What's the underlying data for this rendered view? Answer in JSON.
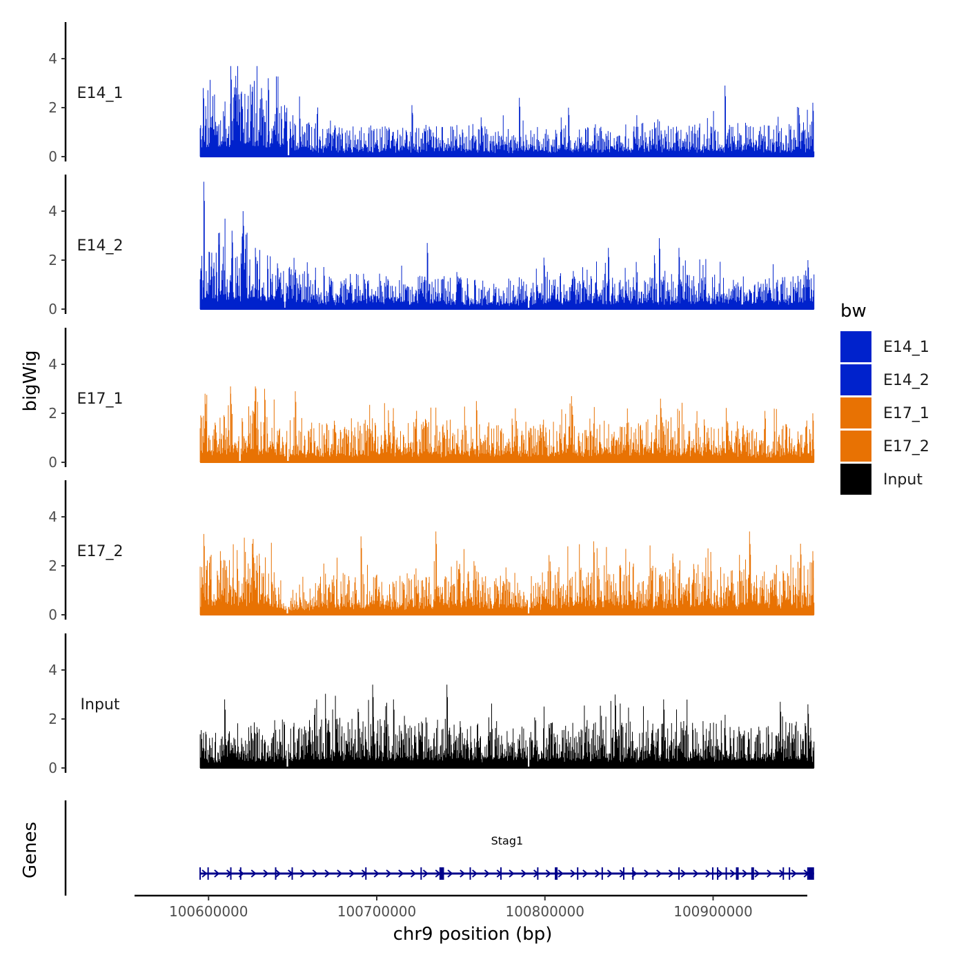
{
  "chart_data": {
    "type": "area",
    "title": "",
    "ylabel": "bigWig",
    "xlabel": "chr9 position (bp)",
    "region": {
      "chrom": "chr9",
      "start": 100595000,
      "end": 100960000
    },
    "xlim": [
      100556000,
      100956000
    ],
    "x_ticks": [
      100600000,
      100700000,
      100800000,
      100900000
    ],
    "x_tick_labels": [
      "100600000",
      "100700000",
      "100800000",
      "100900000"
    ],
    "ylim": [
      0,
      5.5
    ],
    "y_ticks": [
      0,
      2,
      4
    ],
    "y_tick_labels": [
      "0",
      "2",
      "4"
    ],
    "tracks": [
      {
        "name": "E14_1",
        "color": "#0022CC",
        "max": 3.7,
        "profile": [
          [
            0,
            1.6
          ],
          [
            0.02,
            2.0
          ],
          [
            0.05,
            2.4
          ],
          [
            0.09,
            2.3
          ],
          [
            0.12,
            1.9
          ],
          [
            0.145,
            1.5
          ],
          [
            0.2,
            1.0
          ],
          [
            0.3,
            0.95
          ],
          [
            0.4,
            1.0
          ],
          [
            0.5,
            0.9
          ],
          [
            0.6,
            0.95
          ],
          [
            0.7,
            1.0
          ],
          [
            0.75,
            1.1
          ],
          [
            0.8,
            1.0
          ],
          [
            0.85,
            1.0
          ],
          [
            0.9,
            1.0
          ],
          [
            0.95,
            1.05
          ],
          [
            1,
            1.1
          ]
        ],
        "gaps": [
          0.144
        ],
        "peaks": [
          [
            0.005,
            2.8
          ],
          [
            0.05,
            3.7
          ],
          [
            0.058,
            3.3
          ],
          [
            0.1,
            2.8
          ],
          [
            0.111,
            3.2
          ],
          [
            0.345,
            2.1
          ],
          [
            0.52,
            2.4
          ],
          [
            0.6,
            2.0
          ],
          [
            0.855,
            2.9
          ],
          [
            0.975,
            2.0
          ],
          [
            0.998,
            2.2
          ]
        ]
      },
      {
        "name": "E14_2",
        "color": "#0022CC",
        "max": 5.2,
        "profile": [
          [
            0,
            1.7
          ],
          [
            0.02,
            1.9
          ],
          [
            0.06,
            2.1
          ],
          [
            0.1,
            1.9
          ],
          [
            0.13,
            1.5
          ],
          [
            0.2,
            1.0
          ],
          [
            0.3,
            1.1
          ],
          [
            0.4,
            1.0
          ],
          [
            0.5,
            0.8
          ],
          [
            0.55,
            1.0
          ],
          [
            0.6,
            1.2
          ],
          [
            0.7,
            1.15
          ],
          [
            0.8,
            1.1
          ],
          [
            0.9,
            1.0
          ],
          [
            0.95,
            1.05
          ],
          [
            1,
            1.2
          ]
        ],
        "gaps": [
          0.138,
          0.535
        ],
        "peaks": [
          [
            0.006,
            5.2
          ],
          [
            0.03,
            3.1
          ],
          [
            0.052,
            3.2
          ],
          [
            0.07,
            4.0
          ],
          [
            0.09,
            2.5
          ],
          [
            0.37,
            2.7
          ],
          [
            0.56,
            2.1
          ],
          [
            0.665,
            2.5
          ],
          [
            0.74,
            2.2
          ],
          [
            0.748,
            2.9
          ],
          [
            0.78,
            2.5
          ],
          [
            0.99,
            2.0
          ]
        ]
      },
      {
        "name": "E17_1",
        "color": "#E87203",
        "max": 3.1,
        "profile": [
          [
            0,
            1.6
          ],
          [
            0.05,
            1.8
          ],
          [
            0.09,
            2.0
          ],
          [
            0.11,
            1.8
          ],
          [
            0.14,
            1.0
          ],
          [
            0.2,
            1.3
          ],
          [
            0.3,
            1.35
          ],
          [
            0.4,
            1.3
          ],
          [
            0.5,
            1.2
          ],
          [
            0.6,
            1.3
          ],
          [
            0.7,
            1.3
          ],
          [
            0.75,
            1.4
          ],
          [
            0.8,
            1.3
          ],
          [
            0.85,
            1.4
          ],
          [
            0.88,
            1.2
          ],
          [
            0.9,
            1.1
          ],
          [
            0.95,
            1.2
          ],
          [
            1,
            1.4
          ]
        ],
        "gaps": [
          0.065,
          0.143
        ],
        "peaks": [
          [
            0.008,
            2.8
          ],
          [
            0.05,
            2.8
          ],
          [
            0.09,
            3.1
          ],
          [
            0.105,
            3.0
          ],
          [
            0.155,
            2.9
          ],
          [
            0.45,
            2.5
          ],
          [
            0.605,
            2.7
          ],
          [
            0.75,
            2.6
          ],
          [
            0.92,
            2.1
          ],
          [
            0.998,
            2.0
          ]
        ]
      },
      {
        "name": "E17_2",
        "color": "#E87203",
        "max": 3.4,
        "profile": [
          [
            0,
            1.9
          ],
          [
            0.03,
            2.0
          ],
          [
            0.06,
            1.8
          ],
          [
            0.09,
            2.0
          ],
          [
            0.12,
            1.6
          ],
          [
            0.14,
            0.8
          ],
          [
            0.2,
            1.2
          ],
          [
            0.3,
            1.4
          ],
          [
            0.33,
            1.2
          ],
          [
            0.38,
            1.3
          ],
          [
            0.4,
            1.6
          ],
          [
            0.45,
            1.4
          ],
          [
            0.5,
            1.2
          ],
          [
            0.55,
            1.3
          ],
          [
            0.6,
            1.5
          ],
          [
            0.7,
            1.6
          ],
          [
            0.75,
            1.5
          ],
          [
            0.8,
            1.7
          ],
          [
            0.85,
            1.5
          ],
          [
            0.9,
            1.4
          ],
          [
            0.95,
            1.6
          ],
          [
            1,
            1.7
          ]
        ],
        "gaps": [
          0.142,
          0.535
        ],
        "peaks": [
          [
            0.006,
            3.3
          ],
          [
            0.033,
            2.6
          ],
          [
            0.085,
            2.9
          ],
          [
            0.262,
            3.2
          ],
          [
            0.384,
            3.4
          ],
          [
            0.641,
            3.0
          ],
          [
            0.77,
            2.5
          ],
          [
            0.895,
            3.4
          ],
          [
            0.978,
            2.9
          ],
          [
            0.998,
            2.6
          ]
        ]
      },
      {
        "name": "Input",
        "color": "#000000",
        "max": 3.4,
        "profile": [
          [
            0,
            1.3
          ],
          [
            0.1,
            1.4
          ],
          [
            0.2,
            1.6
          ],
          [
            0.25,
            1.8
          ],
          [
            0.3,
            1.7
          ],
          [
            0.35,
            1.6
          ],
          [
            0.4,
            1.5
          ],
          [
            0.5,
            1.4
          ],
          [
            0.6,
            1.5
          ],
          [
            0.7,
            1.45
          ],
          [
            0.8,
            1.5
          ],
          [
            0.9,
            1.4
          ],
          [
            0.95,
            1.5
          ],
          [
            1,
            1.4
          ]
        ],
        "gaps": [
          0.142,
          0.535
        ],
        "peaks": [
          [
            0.04,
            2.8
          ],
          [
            0.281,
            3.4
          ],
          [
            0.315,
            2.8
          ],
          [
            0.402,
            3.4
          ],
          [
            0.676,
            3.0
          ],
          [
            0.755,
            2.8
          ],
          [
            0.945,
            2.7
          ],
          [
            0.99,
            2.6
          ]
        ]
      }
    ],
    "genes": [
      {
        "name": "Stag1",
        "strand": "+",
        "start": 100595000,
        "end": 100960000
      }
    ],
    "legend": {
      "title": "bw",
      "position": "right",
      "items": [
        {
          "label": "E14_1",
          "color": "#0022CC"
        },
        {
          "label": "E14_2",
          "color": "#0022CC"
        },
        {
          "label": "E17_1",
          "color": "#E87203"
        },
        {
          "label": "E17_2",
          "color": "#E87203"
        },
        {
          "label": "Input",
          "color": "#000000"
        }
      ]
    },
    "genes_panel_label": "Genes",
    "gene_color": "#00008B"
  }
}
